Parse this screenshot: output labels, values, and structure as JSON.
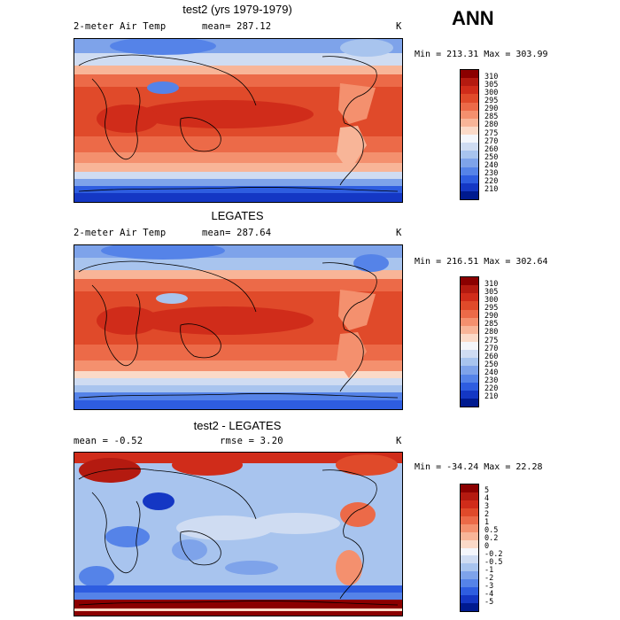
{
  "season": "ANN",
  "panels": [
    {
      "title": "test2 (yrs 1979-1979)",
      "left_label": "2-meter Air Temp",
      "center_label": "mean= 287.12",
      "units": "K",
      "minmax": "Min = 213.31 Max = 303.99",
      "colorbar": {
        "labels": [
          "310",
          "305",
          "300",
          "295",
          "290",
          "285",
          "280",
          "275",
          "270",
          "260",
          "250",
          "240",
          "230",
          "220",
          "210"
        ],
        "colors": [
          "#8b0000",
          "#b41a10",
          "#d02c1a",
          "#e04a2a",
          "#ec6a48",
          "#f4906e",
          "#f8b598",
          "#fbdac8",
          "#f4f6fb",
          "#cfdcf2",
          "#a8c4ee",
          "#7ea3ea",
          "#5583e8",
          "#2e5de0",
          "#1437c4",
          "#001a8f"
        ]
      }
    },
    {
      "title": "LEGATES",
      "left_label": "2-meter Air Temp",
      "center_label": "mean= 287.64",
      "units": "K",
      "minmax": "Min = 216.51 Max = 302.64",
      "colorbar": {
        "labels": [
          "310",
          "305",
          "300",
          "295",
          "290",
          "285",
          "280",
          "275",
          "270",
          "260",
          "250",
          "240",
          "230",
          "220",
          "210"
        ],
        "colors": [
          "#8b0000",
          "#b41a10",
          "#d02c1a",
          "#e04a2a",
          "#ec6a48",
          "#f4906e",
          "#f8b598",
          "#fbdac8",
          "#f4f6fb",
          "#cfdcf2",
          "#a8c4ee",
          "#7ea3ea",
          "#5583e8",
          "#2e5de0",
          "#1437c4",
          "#001a8f"
        ]
      }
    },
    {
      "title": "test2 - LEGATES",
      "left_label": "mean =   -0.52",
      "center_label": "rmse =    3.20",
      "units": "K",
      "minmax": "Min = -34.24 Max =  22.28",
      "colorbar": {
        "labels": [
          "5",
          "4",
          "3",
          "2",
          "1",
          "0.5",
          "0.2",
          "0",
          "-0.2",
          "-0.5",
          "-1",
          "-2",
          "-3",
          "-4",
          "-5"
        ],
        "colors": [
          "#8b0000",
          "#b41a10",
          "#d02c1a",
          "#e04a2a",
          "#ec6a48",
          "#f4906e",
          "#f8b598",
          "#fbdac8",
          "#f4f6fb",
          "#cfdcf2",
          "#a8c4ee",
          "#7ea3ea",
          "#5583e8",
          "#2e5de0",
          "#1437c4",
          "#001a8f"
        ]
      }
    }
  ]
}
